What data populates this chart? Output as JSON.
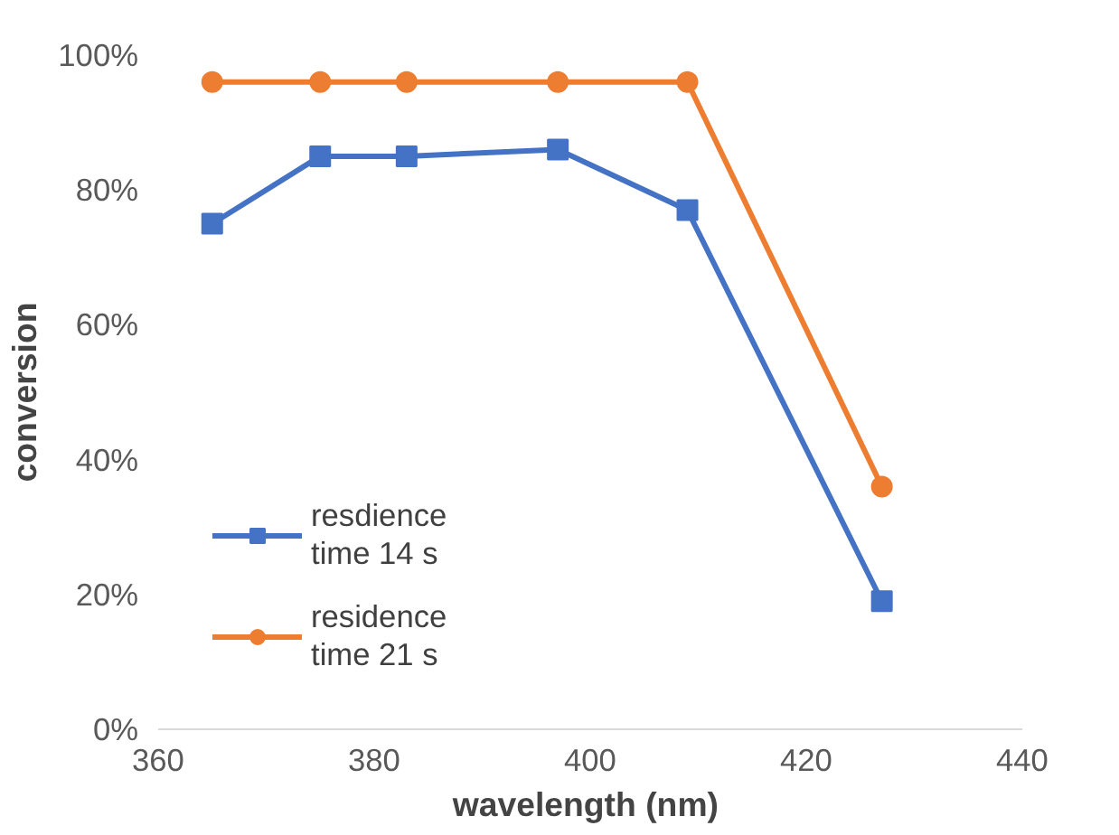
{
  "chart_data": {
    "type": "line",
    "xlabel": "wavelength  (nm)",
    "ylabel": "conversion",
    "series": [
      {
        "name": "resdience time 14 s",
        "color": "#4472c4",
        "marker": "square",
        "x": [
          365,
          375,
          383,
          397,
          409,
          427
        ],
        "values": [
          75,
          85,
          85,
          86,
          77,
          19
        ]
      },
      {
        "name": "residence time 21 s",
        "color": "#ed7d31",
        "marker": "circle",
        "x": [
          365,
          375,
          383,
          397,
          409,
          427
        ],
        "values": [
          96,
          96,
          96,
          96,
          96,
          36
        ]
      }
    ],
    "xlim": [
      360,
      440
    ],
    "xticks": [
      360,
      380,
      400,
      420,
      440
    ],
    "ylim": [
      0,
      100
    ],
    "yticks": [
      {
        "value": 0,
        "label": "0%"
      },
      {
        "value": 20,
        "label": "20%"
      },
      {
        "value": 40,
        "label": "40%"
      },
      {
        "value": 60,
        "label": "60%"
      },
      {
        "value": 80,
        "label": "80%"
      },
      {
        "value": 100,
        "label": "100%"
      }
    ],
    "grid": false,
    "legend": "bottom left"
  }
}
